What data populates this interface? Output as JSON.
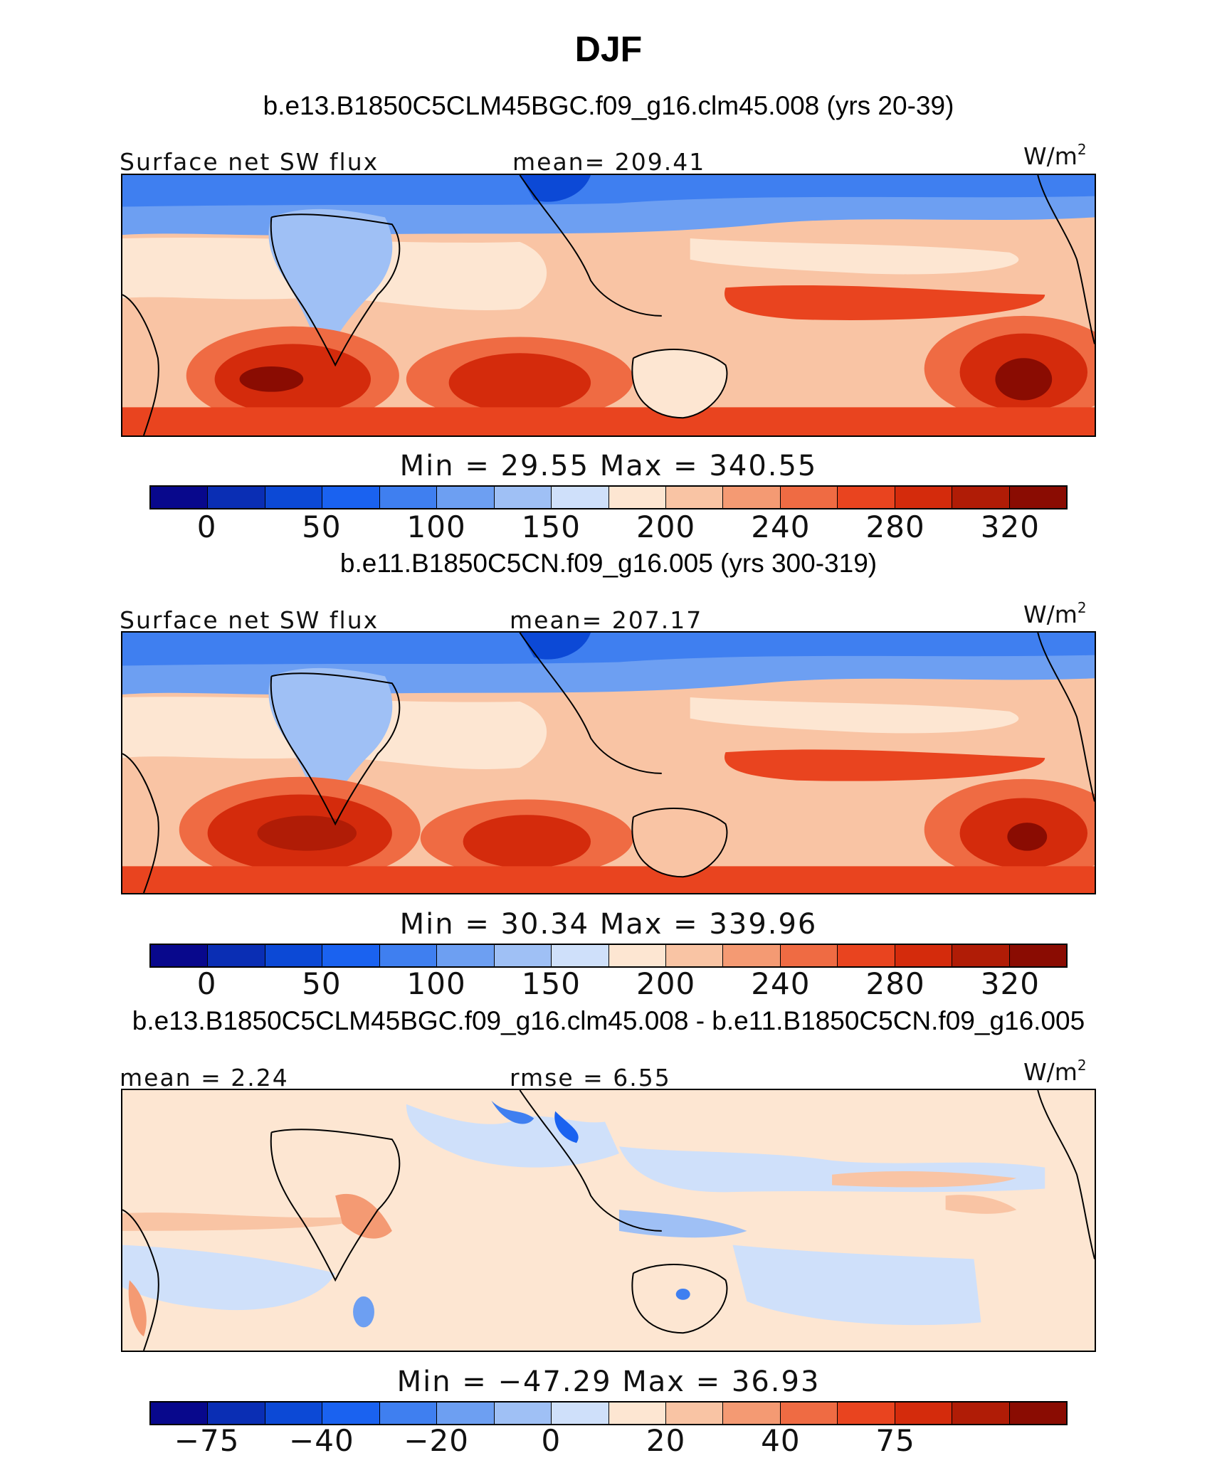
{
  "page": {
    "title": "DJF"
  },
  "palettes": {
    "abs": [
      "#08088c",
      "#0a2eb4",
      "#0c49d6",
      "#1a62f0",
      "#3f7ff0",
      "#6d9ff2",
      "#9fc0f5",
      "#cfe0fa",
      "#fde6d2",
      "#f9c4a4",
      "#f49a73",
      "#ef6b43",
      "#e9441f",
      "#d42b0c",
      "#b01c06",
      "#8a0c02"
    ],
    "diff": [
      "#08088c",
      "#0a2eb4",
      "#0c49d6",
      "#1a62f0",
      "#3f7ff0",
      "#6d9ff2",
      "#9fc0f5",
      "#cfe0fa",
      "#fde6d2",
      "#f9c4a4",
      "#f49a73",
      "#ef6b43",
      "#e9441f",
      "#d42b0c",
      "#b01c06",
      "#8a0c02"
    ]
  },
  "panels": [
    {
      "case_title": "b.e13.B1850C5CLM45BGC.f09_g16.clm45.008 (yrs 20-39)",
      "left_label": "Surface net SW flux",
      "center_label": "mean= 209.41",
      "units": "W/m",
      "units_sup": "2",
      "minmax": "Min  =   29.55  Max  =  340.55",
      "colorbar": "abs",
      "ticks": [
        "0",
        "50",
        "100",
        "150",
        "200",
        "240",
        "280",
        "320"
      ]
    },
    {
      "case_title": "b.e11.B1850C5CN.f09_g16.005 (yrs 300-319)",
      "left_label": "Surface net SW flux",
      "center_label": "mean= 207.17",
      "units": "W/m",
      "units_sup": "2",
      "minmax": "Min  =   30.34  Max  =  339.96",
      "colorbar": "abs",
      "ticks": [
        "0",
        "50",
        "100",
        "150",
        "200",
        "240",
        "280",
        "320"
      ]
    },
    {
      "case_title": "b.e13.B1850C5CLM45BGC.f09_g16.clm45.008 - b.e11.B1850C5CN.f09_g16.005",
      "left_label": "mean  =    2.24",
      "center_label": "rmse  =    6.55",
      "units": "W/m",
      "units_sup": "2",
      "minmax": "Min  = −47.29  Max  =   36.93",
      "colorbar": "diff",
      "ticks": [
        "−75",
        "−40",
        "−20",
        "0",
        "20",
        "40",
        "75"
      ]
    }
  ]
}
